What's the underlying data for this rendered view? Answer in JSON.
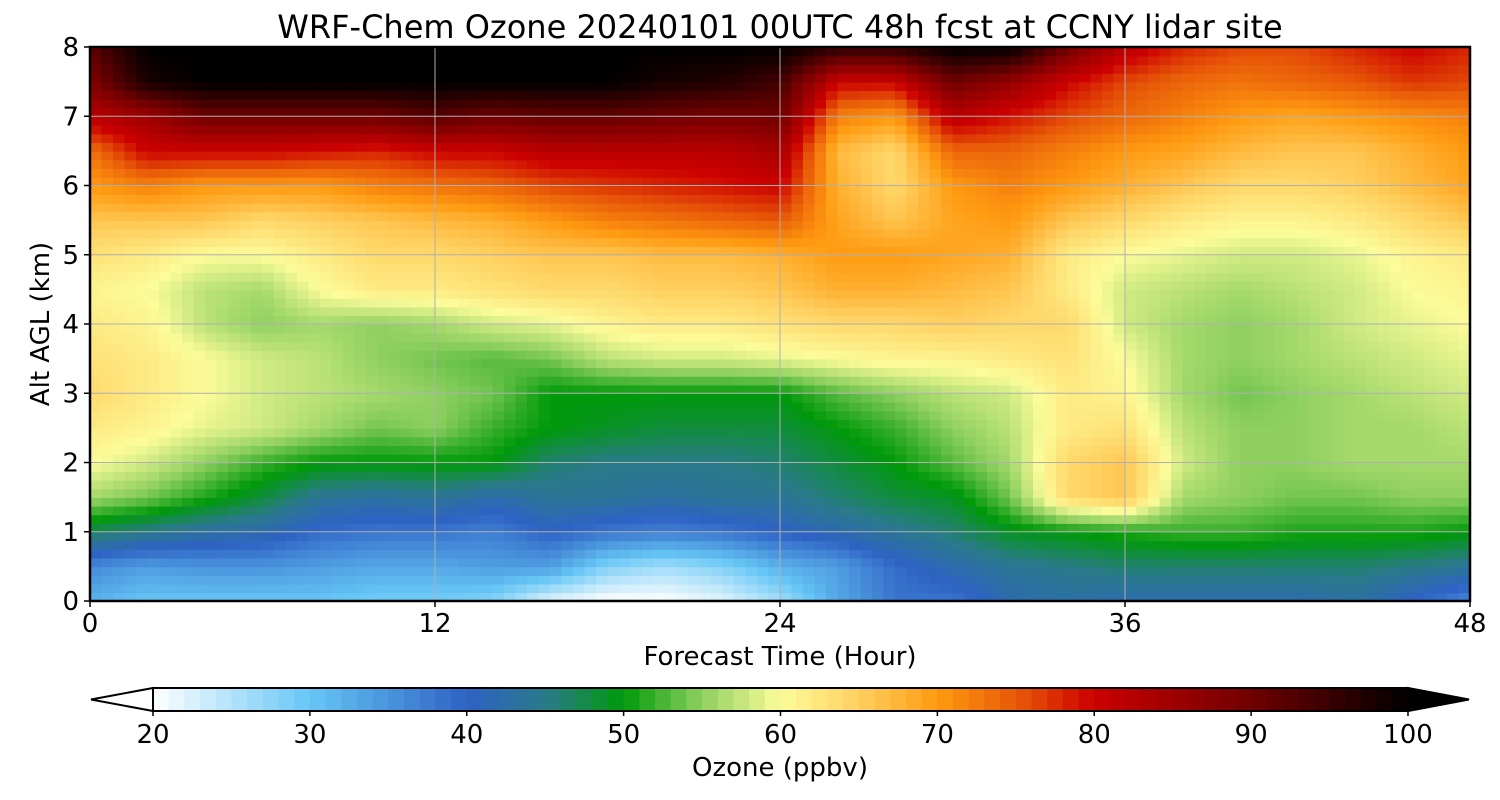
{
  "chart_data": {
    "type": "heatmap",
    "title": "WRF-Chem Ozone  20240101 00UTC 48h fcst at CCNY lidar site",
    "xlabel": "Forecast Time (Hour)",
    "ylabel": "Alt AGL (km)",
    "xlim": [
      0,
      48
    ],
    "ylim": [
      0,
      8
    ],
    "x_ticks": [
      "0",
      "12",
      "24",
      "36",
      "48"
    ],
    "y_ticks": [
      "0",
      "1",
      "2",
      "3",
      "4",
      "5",
      "6",
      "7",
      "8"
    ],
    "grid": true,
    "colorbar": {
      "label": "Ozone  (ppbv)",
      "min": 20,
      "max": 100,
      "ticks": [
        "20",
        "30",
        "40",
        "50",
        "60",
        "70",
        "80",
        "90",
        "100"
      ],
      "extend": "both",
      "stops": [
        {
          "value": 20,
          "color": "#ffffff"
        },
        {
          "value": 30,
          "color": "#66c6f5"
        },
        {
          "value": 40,
          "color": "#2e62c4"
        },
        {
          "value": 45,
          "color": "#2a7a8a"
        },
        {
          "value": 50,
          "color": "#00990a"
        },
        {
          "value": 55,
          "color": "#8fd060"
        },
        {
          "value": 60,
          "color": "#fcfc9a"
        },
        {
          "value": 65,
          "color": "#ffd060"
        },
        {
          "value": 70,
          "color": "#ff9a10"
        },
        {
          "value": 75,
          "color": "#e85a08"
        },
        {
          "value": 80,
          "color": "#cc0000"
        },
        {
          "value": 90,
          "color": "#700000"
        },
        {
          "value": 100,
          "color": "#000000"
        }
      ]
    },
    "times": [
      0,
      2,
      4,
      6,
      8,
      10,
      12,
      14,
      16,
      18,
      20,
      22,
      24,
      26,
      28,
      30,
      32,
      34,
      36,
      38,
      40,
      42,
      44,
      46,
      48
    ],
    "altitudes": [
      0,
      0.5,
      1,
      1.5,
      2,
      2.5,
      3,
      3.5,
      4,
      4.5,
      5,
      5.5,
      6,
      6.5,
      7,
      7.5,
      8
    ],
    "values": [
      [
        32,
        30,
        30,
        30,
        30,
        29,
        29,
        28,
        22,
        20,
        20,
        22,
        26,
        33,
        38,
        38,
        42,
        43,
        42,
        42,
        42,
        42,
        43,
        40,
        36
      ],
      [
        36,
        34,
        35,
        35,
        34,
        33,
        33,
        34,
        34,
        28,
        26,
        28,
        32,
        34,
        39,
        42,
        44,
        45,
        46,
        46,
        46,
        46,
        46,
        45,
        44
      ],
      [
        47,
        45,
        43,
        42,
        39,
        38,
        38,
        37,
        40,
        38,
        37,
        38,
        40,
        42,
        44,
        46,
        49,
        50,
        51,
        52,
        52,
        51,
        51,
        51,
        50
      ],
      [
        56,
        54,
        51,
        48,
        44,
        43,
        44,
        42,
        44,
        44,
        43,
        44,
        44,
        46,
        48,
        49,
        54,
        64,
        66,
        56,
        55,
        54,
        54,
        55,
        55
      ],
      [
        60,
        58,
        55,
        52,
        50,
        50,
        50,
        50,
        46,
        45,
        45,
        45,
        46,
        48,
        50,
        53,
        56,
        64,
        66,
        58,
        55,
        55,
        56,
        56,
        56
      ],
      [
        62,
        61,
        59,
        58,
        56,
        54,
        55,
        52,
        50,
        49,
        48,
        48,
        48,
        50,
        52,
        55,
        57,
        62,
        63,
        57,
        55,
        55,
        56,
        56,
        57
      ],
      [
        64,
        62,
        60,
        58,
        57,
        56,
        55,
        54,
        50,
        50,
        50,
        50,
        50,
        53,
        55,
        57,
        58,
        62,
        61,
        56,
        54,
        55,
        56,
        57,
        58
      ],
      [
        63,
        62,
        60,
        58,
        57,
        55,
        54,
        53,
        54,
        57,
        58,
        58,
        59,
        60,
        61,
        61,
        62,
        63,
        60,
        56,
        55,
        56,
        57,
        58,
        59
      ],
      [
        62,
        61,
        57,
        55,
        56,
        55,
        56,
        58,
        59,
        61,
        62,
        62,
        63,
        64,
        64,
        65,
        64,
        64,
        58,
        56,
        55,
        56,
        58,
        59,
        60
      ],
      [
        61,
        60,
        57,
        56,
        60,
        62,
        62,
        63,
        64,
        64,
        65,
        65,
        66,
        68,
        68,
        67,
        66,
        62,
        58,
        57,
        56,
        57,
        58,
        60,
        61
      ],
      [
        63,
        62,
        60,
        60,
        62,
        64,
        64,
        65,
        66,
        66,
        67,
        67,
        68,
        70,
        70,
        69,
        68,
        62,
        60,
        59,
        58,
        58,
        59,
        61,
        62
      ],
      [
        66,
        66,
        66,
        64,
        65,
        66,
        67,
        68,
        70,
        72,
        73,
        74,
        75,
        69,
        66,
        69,
        70,
        66,
        64,
        62,
        61,
        61,
        62,
        64,
        66
      ],
      [
        70,
        72,
        70,
        70,
        70,
        72,
        73,
        74,
        76,
        77,
        78,
        79,
        80,
        68,
        64,
        70,
        72,
        70,
        68,
        66,
        64,
        64,
        65,
        67,
        69
      ],
      [
        73,
        80,
        80,
        80,
        79,
        78,
        80,
        80,
        82,
        82,
        82,
        82,
        84,
        67,
        64,
        74,
        74,
        72,
        70,
        69,
        67,
        66,
        66,
        68,
        70
      ],
      [
        82,
        85,
        90,
        90,
        90,
        90,
        92,
        90,
        91,
        91,
        90,
        89,
        90,
        72,
        70,
        82,
        79,
        76,
        74,
        72,
        70,
        69,
        70,
        71,
        72
      ],
      [
        88,
        98,
        100,
        100,
        100,
        100,
        100,
        100,
        100,
        100,
        98,
        97,
        94,
        80,
        80,
        90,
        86,
        80,
        76,
        74,
        73,
        74,
        75,
        77,
        76
      ],
      [
        92,
        100,
        100,
        100,
        100,
        100,
        100,
        100,
        100,
        100,
        100,
        100,
        100,
        96,
        96,
        100,
        100,
        90,
        82,
        78,
        76,
        76,
        78,
        80,
        78
      ]
    ]
  }
}
